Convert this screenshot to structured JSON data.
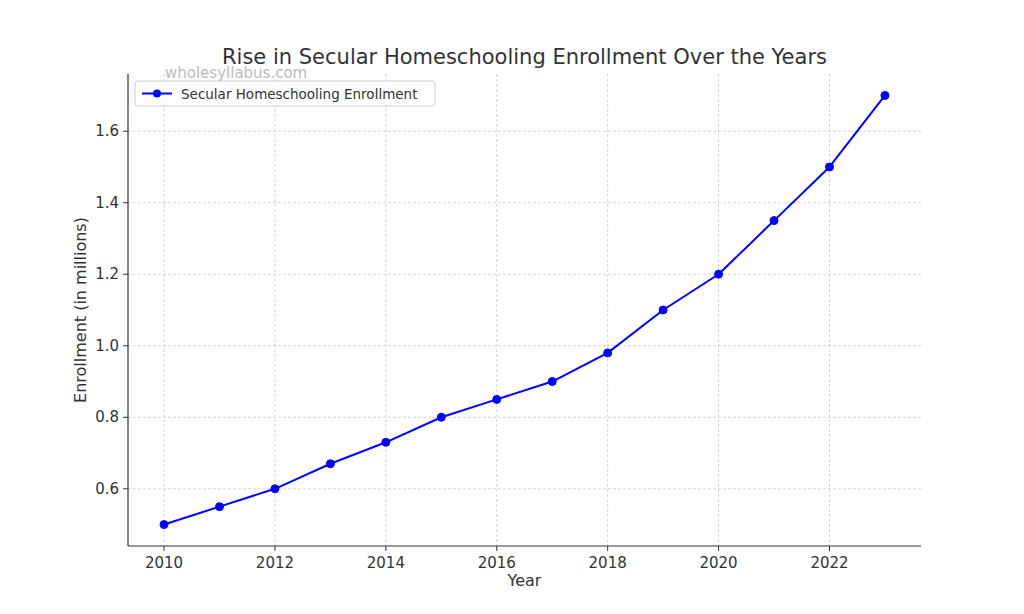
{
  "chart_data": {
    "type": "line",
    "title": "Rise in Secular Homeschooling Enrollment Over the Years",
    "x_label": "Year",
    "y_label": "Enrollment (in millions)",
    "annotations": [
      "wholesyllabus.com"
    ],
    "x": [
      2010,
      2011,
      2012,
      2013,
      2014,
      2015,
      2016,
      2017,
      2018,
      2019,
      2020,
      2021,
      2022,
      2023
    ],
    "series": [
      {
        "name": "Secular Homeschooling Enrollment",
        "color": "#0000ff",
        "marker": "circle",
        "line_style": "solid",
        "values": [
          0.5,
          0.55,
          0.6,
          0.67,
          0.73,
          0.8,
          0.85,
          0.9,
          0.98,
          1.1,
          1.2,
          1.35,
          1.5,
          1.7
        ]
      }
    ],
    "xlim": [
      2009.35,
      2023.65
    ],
    "ylim": [
      0.44,
      1.76
    ],
    "xticks": [
      2010,
      2012,
      2014,
      2016,
      2018,
      2020,
      2022
    ],
    "yticks": [
      0.6,
      0.8,
      {
        "value": 1.0,
        "label": "1.0"
      },
      1.2,
      1.4,
      1.6
    ],
    "grid": true,
    "legend": "upper left"
  }
}
